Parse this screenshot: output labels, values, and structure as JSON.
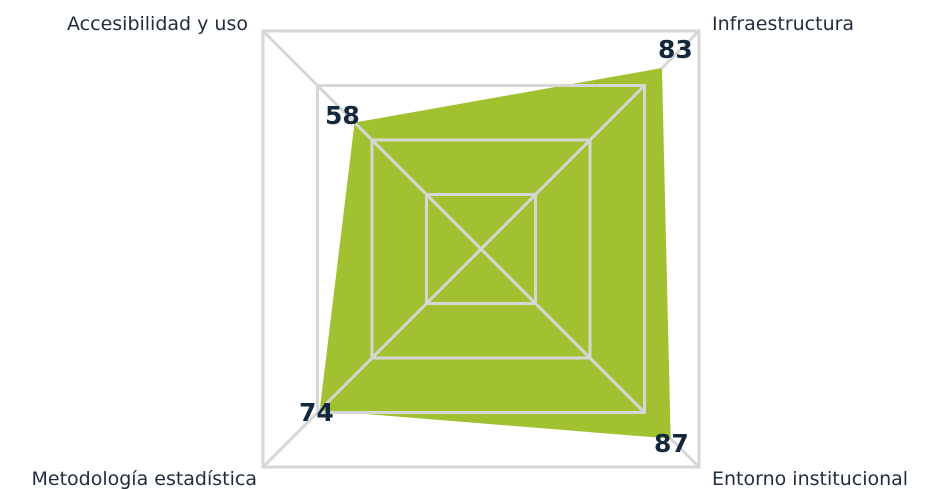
{
  "chart_data": {
    "type": "radar",
    "axes": [
      {
        "key": "top-left",
        "label": "Accesibilidad y uso",
        "value": 58
      },
      {
        "key": "top-right",
        "label": "Infraestructura",
        "value": 83
      },
      {
        "key": "bottom-right",
        "label": "Entorno institucional",
        "value": 87
      },
      {
        "key": "bottom-left",
        "label": "Metodología estadística",
        "value": 74
      }
    ],
    "range": [
      0,
      100
    ],
    "rings": 4,
    "grid": true,
    "legend": "none",
    "colors": {
      "fill": "#a2c131",
      "grid": "#d6d6d6",
      "text": "#1f2d3d",
      "value_text": "#14283d"
    }
  }
}
